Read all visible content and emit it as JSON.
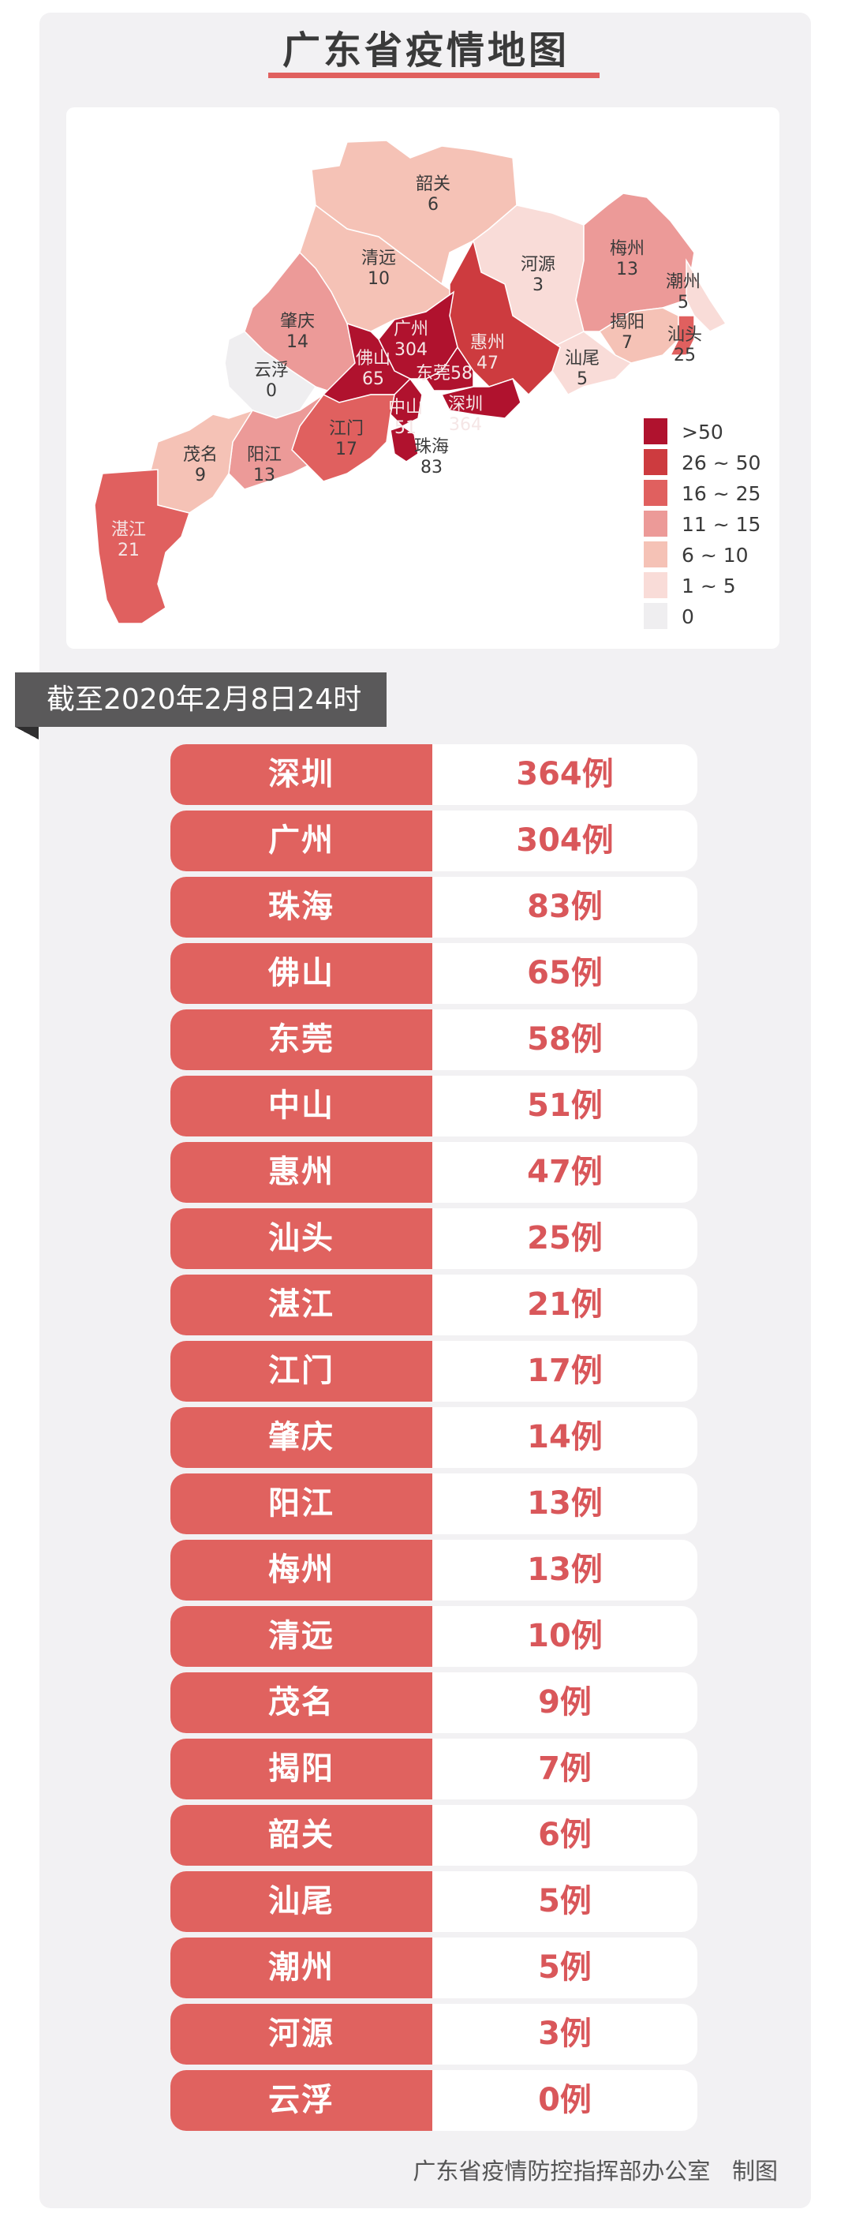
{
  "title": "广东省疫情地图",
  "date_banner": "截至2020年2月8日24时",
  "footer": {
    "org": "广东省疫情防控指挥部办公室",
    "suffix": "制图"
  },
  "legend": [
    {
      "label": ">50",
      "color": "#b0122e"
    },
    {
      "label": "26 ~ 50",
      "color": "#cd3b3f"
    },
    {
      "label": "16 ~ 25",
      "color": "#e0605f"
    },
    {
      "label": "11 ~ 15",
      "color": "#ec9a98"
    },
    {
      "label": "6 ~ 10",
      "color": "#f5c2b6"
    },
    {
      "label": "1 ~ 5",
      "color": "#f9dcd8"
    },
    {
      "label": "0",
      "color": "#efeef0"
    }
  ],
  "map_regions": [
    {
      "name": "韶关",
      "value": "6"
    },
    {
      "name": "清远",
      "value": "10"
    },
    {
      "name": "河源",
      "value": "3"
    },
    {
      "name": "梅州",
      "value": "13"
    },
    {
      "name": "潮州",
      "value": "5"
    },
    {
      "name": "揭阳",
      "value": "7"
    },
    {
      "name": "汕头",
      "value": "25"
    },
    {
      "name": "汕尾",
      "value": "5"
    },
    {
      "name": "惠州",
      "value": "47"
    },
    {
      "name": "广州",
      "value": "304"
    },
    {
      "name": "肇庆",
      "value": "14"
    },
    {
      "name": "云浮",
      "value": "0"
    },
    {
      "name": "佛山",
      "value": "65"
    },
    {
      "name": "东莞",
      "value": "58"
    },
    {
      "name": "深圳",
      "value": "364"
    },
    {
      "name": "中山",
      "value": "51"
    },
    {
      "name": "珠海",
      "value": "83"
    },
    {
      "name": "江门",
      "value": "17"
    },
    {
      "name": "阳江",
      "value": "13"
    },
    {
      "name": "茂名",
      "value": "9"
    },
    {
      "name": "湛江",
      "value": "21"
    }
  ],
  "table": [
    {
      "city": "深圳",
      "count": "364例"
    },
    {
      "city": "广州",
      "count": "304例"
    },
    {
      "city": "珠海",
      "count": "83例"
    },
    {
      "city": "佛山",
      "count": "65例"
    },
    {
      "city": "东莞",
      "count": "58例"
    },
    {
      "city": "中山",
      "count": "51例"
    },
    {
      "city": "惠州",
      "count": "47例"
    },
    {
      "city": "汕头",
      "count": "25例"
    },
    {
      "city": "湛江",
      "count": "21例"
    },
    {
      "city": "江门",
      "count": "17例"
    },
    {
      "city": "肇庆",
      "count": "14例"
    },
    {
      "city": "阳江",
      "count": "13例"
    },
    {
      "city": "梅州",
      "count": "13例"
    },
    {
      "city": "清远",
      "count": "10例"
    },
    {
      "city": "茂名",
      "count": "9例"
    },
    {
      "city": "揭阳",
      "count": "7例"
    },
    {
      "city": "韶关",
      "count": "6例"
    },
    {
      "city": "汕尾",
      "count": "5例"
    },
    {
      "city": "潮州",
      "count": "5例"
    },
    {
      "city": "河源",
      "count": "3例"
    },
    {
      "city": "云浮",
      "count": "0例"
    }
  ]
}
